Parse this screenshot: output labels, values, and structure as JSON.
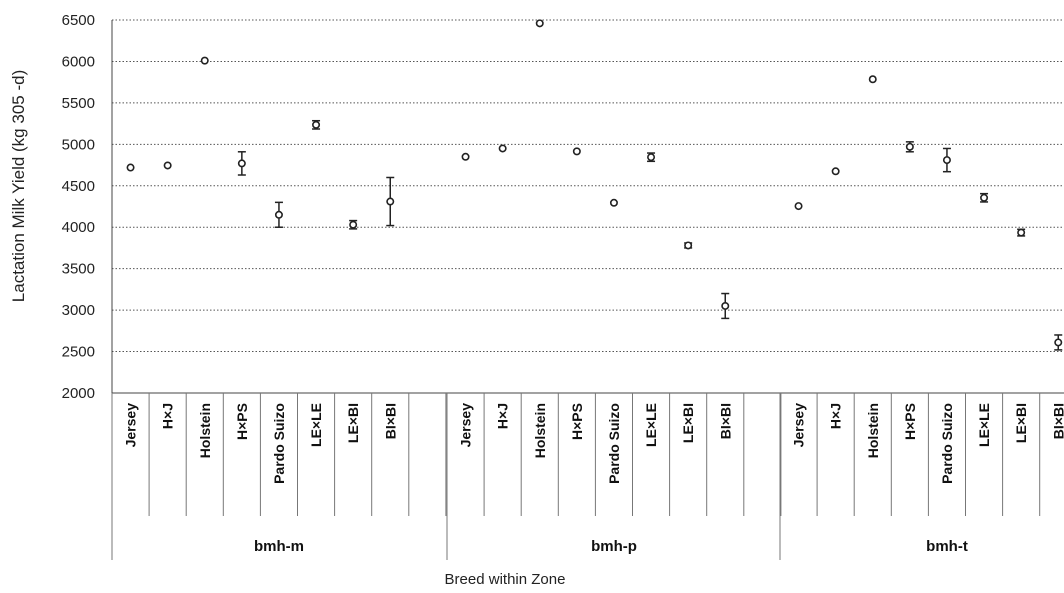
{
  "chart_data": {
    "type": "scatter",
    "ylabel": "Lactation Milk Yield (kg  305 -d)",
    "xlabel": "Breed within Zone",
    "ylim": [
      2000,
      6500
    ],
    "yticks": [
      "2000",
      "2500",
      "3000",
      "3500",
      "4000",
      "4500",
      "5000",
      "5500",
      "6000",
      "6500"
    ],
    "grid": "horizontal-dotted",
    "error_bars": true,
    "groups": [
      {
        "zone": "bmh-m",
        "categories": [
          "Jersey",
          "H×J",
          "Holstein",
          "H×PS",
          "Pardo Suizo",
          "LE×LE",
          "LE×BI",
          "BI×BI"
        ],
        "values": [
          4720,
          4745,
          6010,
          4770,
          4150,
          5235,
          4030,
          4310
        ],
        "errors": [
          0,
          0,
          0,
          140,
          150,
          50,
          50,
          290
        ]
      },
      {
        "zone": "bmh-p",
        "categories": [
          "Jersey",
          "H×J",
          "Holstein",
          "H×PS",
          "Pardo Suizo",
          "LE×LE",
          "LE×BI",
          "BI×BI"
        ],
        "values": [
          4850,
          4950,
          6460,
          4915,
          4295,
          4845,
          3780,
          3050
        ],
        "errors": [
          0,
          0,
          0,
          0,
          0,
          50,
          30,
          150
        ]
      },
      {
        "zone": "bmh-t",
        "categories": [
          "Jersey",
          "H×J",
          "Holstein",
          "H×PS",
          "Pardo Suizo",
          "LE×LE",
          "LE×BI",
          "BI×BI"
        ],
        "values": [
          4255,
          4675,
          5785,
          4970,
          4810,
          4355,
          3935,
          2610
        ],
        "errors": [
          0,
          0,
          0,
          60,
          140,
          50,
          40,
          90
        ]
      }
    ]
  }
}
